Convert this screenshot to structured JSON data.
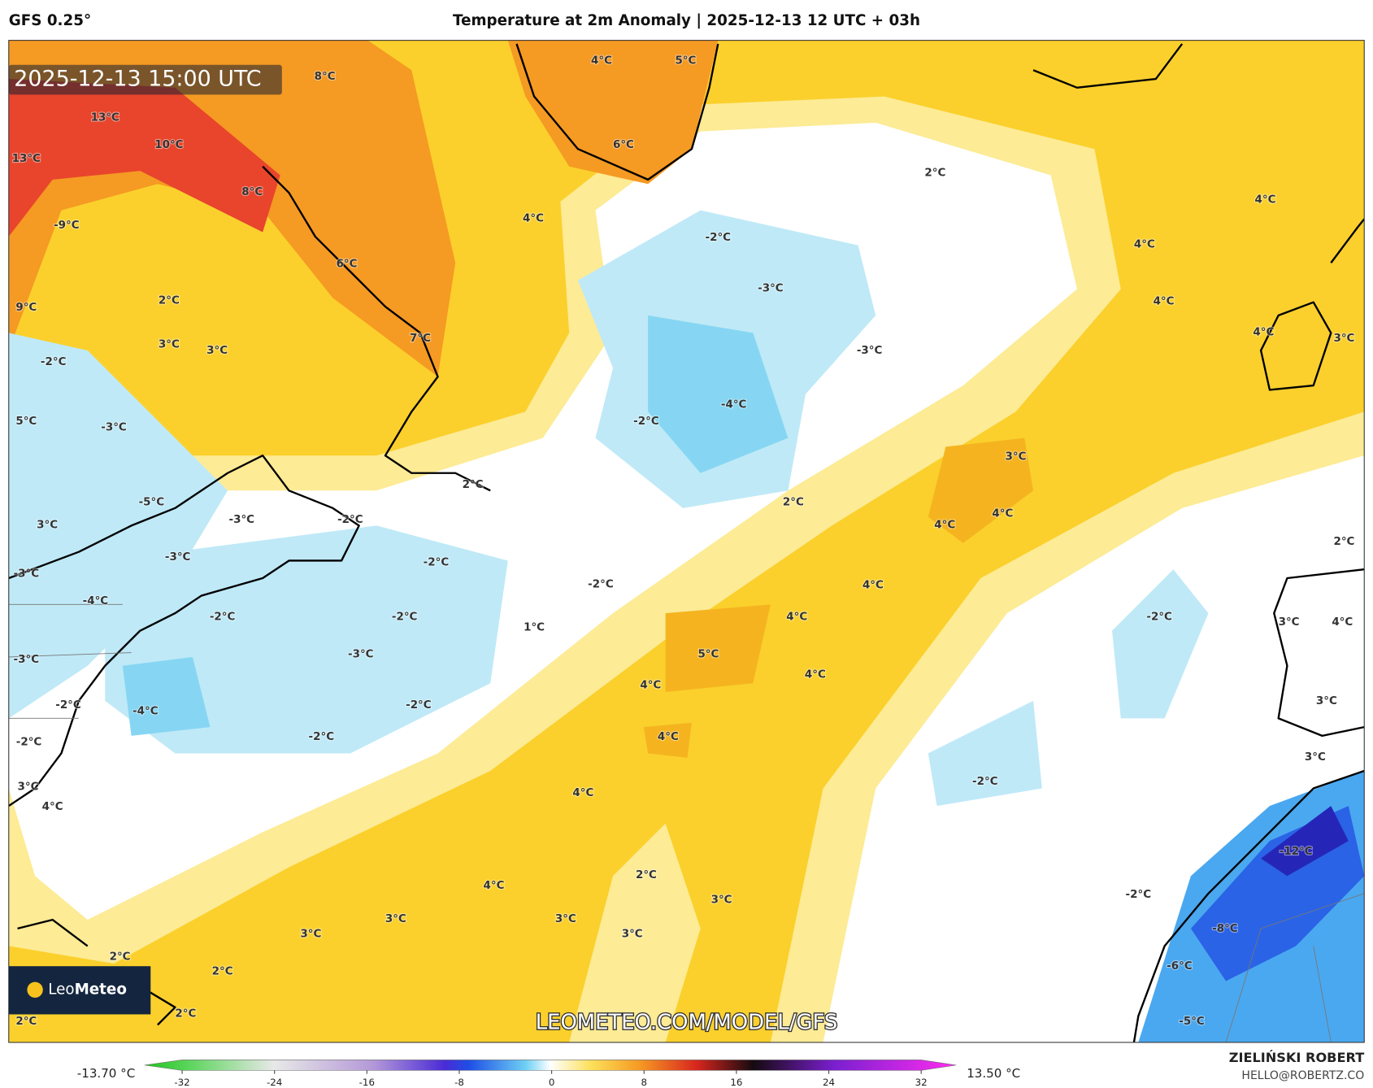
{
  "header": {
    "model": "GFS 0.25°",
    "title": "Temperature at 2m Anomaly | 2025-12-13 12 UTC + 03h"
  },
  "map": {
    "timestamp": "2025-12-13 15:00 UTC",
    "watermark": "LEOMETEO.COM/MODEL/GFS",
    "logo": {
      "part1": "Leo",
      "part2": "Meteo"
    },
    "contour_labels": [
      "8°C",
      "4°C",
      "5°C",
      "13°C",
      "10°C",
      "13°C",
      "6°C",
      "8°C",
      "2°C",
      "4°C",
      "-9°C",
      "-2°C",
      "4°C",
      "4°C",
      "6°C",
      "-3°C",
      "2°C",
      "4°C",
      "4°C",
      "3°C",
      "9°C",
      "7°C",
      "3°C",
      "3°C",
      "-3°C",
      "-2°C",
      "-4°C",
      "-2°C",
      "5°C",
      "-3°C",
      "3°C",
      "2°C",
      "-5°C",
      "2°C",
      "4°C",
      "3°C",
      "-3°C",
      "4°C",
      "-2°C",
      "-3°C",
      "-2°C",
      "2°C",
      "-3°C",
      "-2°C",
      "4°C",
      "-4°C",
      "-2°C",
      "-2°C",
      "4°C",
      "-2°C",
      "3°C",
      "4°C",
      "1°C",
      "5°C",
      "-3°C",
      "-3°C",
      "4°C",
      "4°C",
      "3°C",
      "-2°C",
      "-2°C",
      "-4°C",
      "4°C",
      "-2°C",
      "-2°C",
      "3°C",
      "-2°C",
      "3°C",
      "4°C",
      "4°C",
      "-12°C",
      "2°C",
      "4°C",
      "3°C",
      "-2°C",
      "3°C",
      "3°C",
      "-8°C",
      "3°C",
      "3°C",
      "2°C",
      "-6°C",
      "2°C",
      "2°C",
      "2°C",
      "-5°C"
    ]
  },
  "colorbar": {
    "min_label": "-13.70 °C",
    "max_label": "13.50 °C",
    "ticks": [
      -32,
      -24,
      -16,
      -8,
      0,
      8,
      16,
      24,
      32
    ]
  },
  "footer": {
    "author": "ZIELIŃSKI ROBERT",
    "email": "HELLO@ROBERTZ.CO"
  }
}
